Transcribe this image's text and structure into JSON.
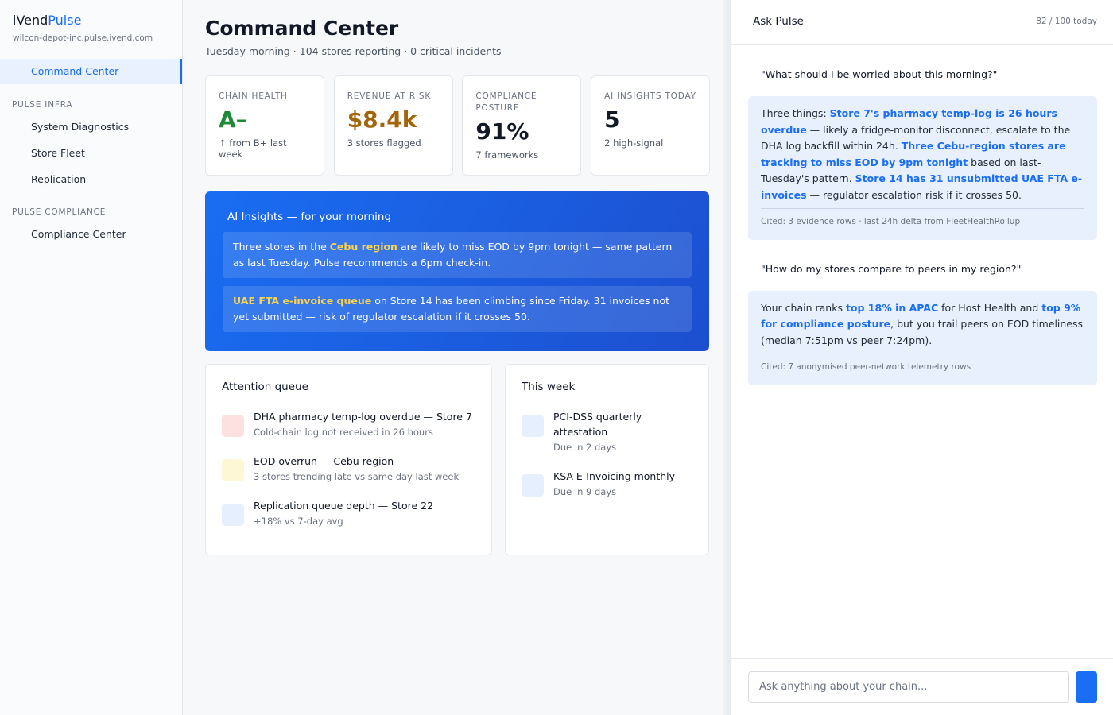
{
  "sidebar": {
    "brand": [
      "iVend",
      "Pulse"
    ],
    "domain": "wilcon-depot-inc.pulse.ivend.com",
    "top_item": "Command Center",
    "groups": [
      {
        "heading": "PULSE INFRA",
        "items": [
          "System Diagnostics",
          "Store Fleet",
          "Replication"
        ]
      },
      {
        "heading": "PULSE COMPLIANCE",
        "items": [
          "Compliance Center"
        ]
      }
    ]
  },
  "main": {
    "title": "Command Center",
    "subtitle": "Tuesday morning · 104 stores reporting · 0 critical incidents",
    "kpis": [
      {
        "label": "CHAIN HEALTH",
        "value": "A–",
        "note": "↑ from B+ last week",
        "color": "#1f8a3b"
      },
      {
        "label": "REVENUE AT RISK",
        "value": "$8.4k",
        "note": "3 stores flagged",
        "color": "#a4650a"
      },
      {
        "label": "COMPLIANCE POSTURE",
        "value": "91%",
        "note": "7 frameworks",
        "color": "#111827"
      },
      {
        "label": "AI INSIGHTS TODAY",
        "value": "5",
        "note": "2 high-signal",
        "color": "#111827"
      }
    ],
    "insights": {
      "title": "AI Insights — for your morning",
      "items": [
        [
          {
            "text": "Three stores in the "
          },
          {
            "text": "Cebu region",
            "em": true
          },
          {
            "text": " are likely to miss EOD by 9pm tonight — same pattern as last Tuesday. Pulse recommends a 6pm check-in."
          }
        ],
        [
          {
            "text": "UAE FTA e-invoice queue",
            "em": true
          },
          {
            "text": " on Store 14 has been climbing since Friday. 31 invoices not yet submitted — risk of regulator escalation if it crosses 50."
          }
        ]
      ]
    },
    "attention": {
      "title": "Attention queue",
      "items": [
        {
          "title": "DHA pharmacy temp-log overdue — Store 7",
          "detail": "Cold-chain log not received in 26 hours",
          "color": "#fde0e0"
        },
        {
          "title": "EOD overrun — Cebu region",
          "detail": "3 stores trending late vs same day last week",
          "color": "#fdf7d6"
        },
        {
          "title": "Replication queue depth — Store 22",
          "detail": "+18% vs 7-day avg",
          "color": "#e6effd"
        }
      ]
    },
    "week": {
      "title": "This week",
      "items": [
        {
          "title": "PCI-DSS quarterly attestation",
          "detail": "Due in 2 days",
          "color": "#e6effd"
        },
        {
          "title": "KSA E-Invoicing monthly",
          "detail": "Due in 9 days",
          "color": "#e6effd"
        }
      ]
    }
  },
  "ask": {
    "title": "Ask Pulse",
    "quota": "82 / 100 today",
    "messages": [
      {
        "role": "user",
        "text": "\"What should I be worried about this morning?\""
      },
      {
        "role": "assistant",
        "segments": [
          {
            "text": "Three things: "
          },
          {
            "text": "Store 7's pharmacy temp-log is 26 hours overdue",
            "em": true
          },
          {
            "text": " — likely a fridge-monitor disconnect, escalate to the DHA log backfill within 24h. "
          },
          {
            "text": "Three Cebu-region stores are tracking to miss EOD by 9pm tonight",
            "em": true
          },
          {
            "text": " based on last-Tuesday's pattern. "
          },
          {
            "text": "Store 14 has 31 unsubmitted UAE FTA e-invoices",
            "em": true
          },
          {
            "text": " — regulator escalation risk if it crosses 50."
          }
        ],
        "cited": "Cited: 3 evidence rows · last 24h delta from FleetHealthRollup"
      },
      {
        "role": "user",
        "text": "\"How do my stores compare to peers in my region?\""
      },
      {
        "role": "assistant",
        "segments": [
          {
            "text": "Your chain ranks "
          },
          {
            "text": "top 18% in APAC",
            "em": true
          },
          {
            "text": " for Host Health and "
          },
          {
            "text": "top 9% for compliance posture",
            "em": true
          },
          {
            "text": ", but you trail peers on EOD timeliness (median 7:51pm vs peer 7:24pm)."
          }
        ],
        "cited": "Cited: 7 anonymised peer-network telemetry rows"
      }
    ],
    "placeholder": "Ask anything about your chain..."
  }
}
